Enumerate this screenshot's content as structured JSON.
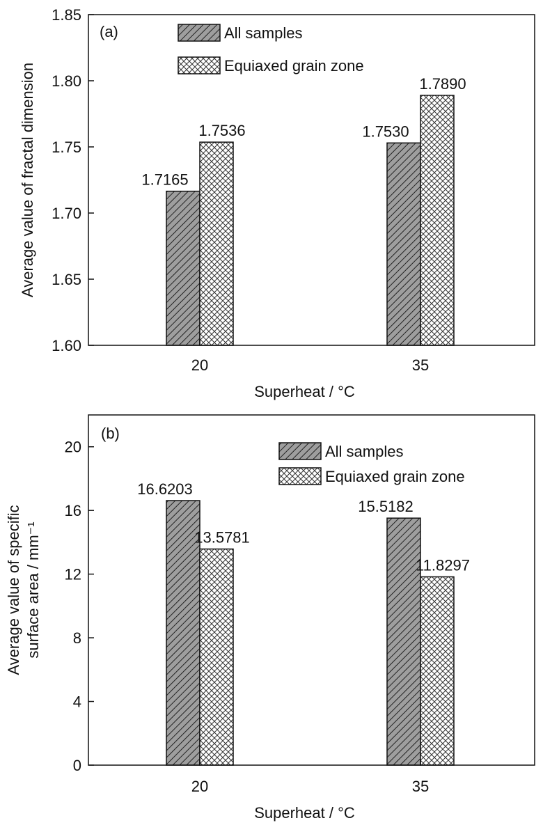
{
  "chart_data": [
    {
      "type": "bar",
      "panel_label": "(a)",
      "categories": [
        "20",
        "35"
      ],
      "series": [
        {
          "name": "All samples",
          "values": [
            1.7165,
            1.753
          ],
          "value_labels": [
            "1.7165",
            "1.7530"
          ],
          "pattern": "diagonal-hatch",
          "fill": "#9e9e9e"
        },
        {
          "name": "Equiaxed grain zone",
          "values": [
            1.7536,
            1.789
          ],
          "value_labels": [
            "1.7536",
            "1.7890"
          ],
          "pattern": "crosshatch",
          "fill": "#ffffff"
        }
      ],
      "xlabel": "Superheat / °C",
      "ylabel": "Average value of fractal dimension",
      "ylim": [
        1.6,
        1.85
      ],
      "yticks": [
        "1.60",
        "1.65",
        "1.70",
        "1.75",
        "1.80",
        "1.85"
      ],
      "grid": false,
      "legend": "top-center"
    },
    {
      "type": "bar",
      "panel_label": "(b)",
      "categories": [
        "20",
        "35"
      ],
      "series": [
        {
          "name": "All samples",
          "values": [
            16.6203,
            15.5182
          ],
          "value_labels": [
            "16.6203",
            "15.5182"
          ],
          "pattern": "diagonal-hatch",
          "fill": "#9e9e9e"
        },
        {
          "name": "Equiaxed grain zone",
          "values": [
            13.5781,
            11.8297
          ],
          "value_labels": [
            "13.5781",
            "11.8297"
          ],
          "pattern": "crosshatch",
          "fill": "#ffffff"
        }
      ],
      "xlabel": "Superheat / °C",
      "ylabel": [
        "Average value of specific",
        "surface area / mm⁻¹"
      ],
      "ylim": [
        0,
        22
      ],
      "yticks": [
        "0",
        "4",
        "8",
        "12",
        "16",
        "20"
      ],
      "grid": false,
      "legend": "top-right"
    }
  ]
}
